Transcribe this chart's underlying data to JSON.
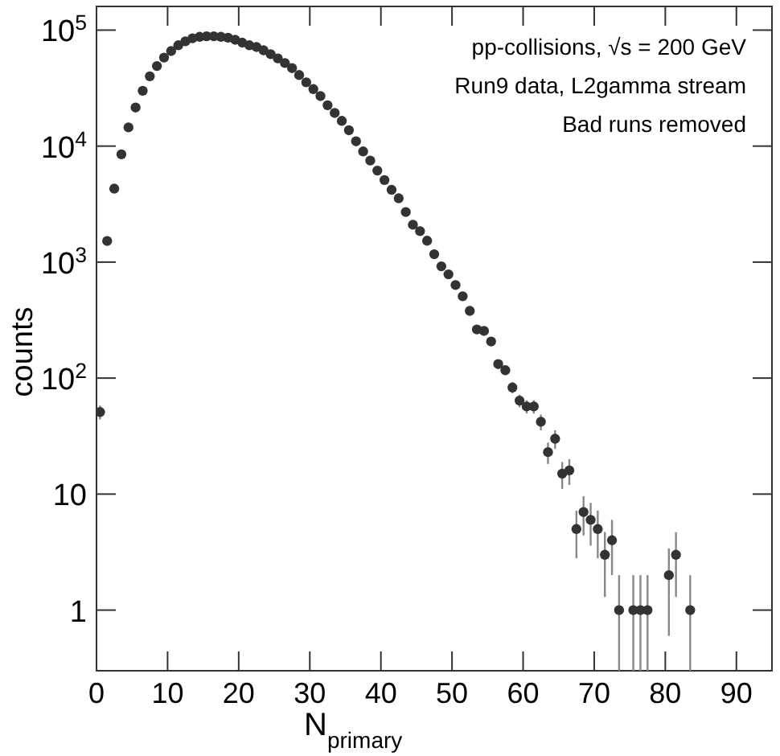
{
  "chart_data": {
    "type": "scatter",
    "xlabel": "N$_{primary}$",
    "ylabel": "counts",
    "annotations": [
      "pp-collisions, √s = 200 GeV",
      "Run9 data, L2gamma stream",
      "Bad runs removed"
    ],
    "log": "y",
    "marker": "circle",
    "grid": false,
    "xlim": [
      0,
      95
    ],
    "ylim": [
      0.3,
      160000
    ],
    "xticks": [
      0,
      10,
      20,
      30,
      40,
      50,
      60,
      70,
      80,
      90
    ],
    "yticks": [
      {
        "value": 1,
        "label": "1"
      },
      {
        "value": 10,
        "label": "10"
      },
      {
        "value": 100,
        "label": "10$^{2}$"
      },
      {
        "value": 1000,
        "label": "10$^{3}$"
      },
      {
        "value": 10000,
        "label": "10$^{4}$"
      },
      {
        "value": 100000,
        "label": "10$^{5}$"
      }
    ],
    "series": [
      {
        "color": "#333333",
        "x": [
          0.5,
          1.5,
          2.5,
          3.5,
          4.5,
          5.5,
          6.5,
          7.5,
          8.5,
          9.5,
          10.5,
          11.5,
          12.5,
          13.5,
          14.5,
          15.5,
          16.5,
          17.5,
          18.5,
          19.5,
          20.5,
          21.5,
          22.5,
          23.5,
          24.5,
          25.5,
          26.5,
          27.5,
          28.5,
          29.5,
          30.5,
          31.5,
          32.5,
          33.5,
          34.5,
          35.5,
          36.5,
          37.5,
          38.5,
          39.5,
          40.5,
          41.5,
          42.5,
          43.5,
          44.5,
          45.5,
          46.5,
          47.5,
          48.5,
          49.5,
          50.5,
          51.5,
          52.5,
          53.5,
          54.5,
          55.5,
          56.5,
          57.5,
          58.5,
          59.5,
          60.5,
          61.5,
          62.5,
          63.5,
          64.5,
          65.5,
          66.5,
          67.5,
          68.5,
          69.5,
          70.5,
          71.5,
          72.5,
          73.5,
          75.5,
          76.5,
          77.5,
          80.5,
          81.5,
          83.5
        ],
        "values": [
          51,
          1520,
          4300,
          8500,
          14500,
          21500,
          30000,
          40000,
          49000,
          58000,
          66000,
          74000,
          80000,
          85000,
          87500,
          88500,
          88500,
          87500,
          86000,
          82500,
          78000,
          74000,
          71500,
          67000,
          62000,
          57000,
          52000,
          47000,
          41000,
          35500,
          31000,
          27000,
          22500,
          19300,
          16500,
          13700,
          11000,
          9000,
          7500,
          6150,
          5100,
          4200,
          3550,
          2700,
          2100,
          1850,
          1530,
          1170,
          920,
          785,
          635,
          508,
          380,
          263,
          255,
          207,
          132,
          117,
          83,
          64,
          57,
          57,
          42,
          23,
          30,
          15,
          16,
          5,
          7,
          6,
          5,
          3,
          4,
          1,
          1,
          1,
          1,
          2,
          3,
          1
        ],
        "errors": [
          7,
          null,
          null,
          null,
          null,
          null,
          null,
          null,
          null,
          null,
          null,
          null,
          null,
          null,
          null,
          null,
          null,
          null,
          null,
          null,
          null,
          null,
          null,
          null,
          null,
          null,
          null,
          null,
          null,
          null,
          null,
          null,
          null,
          null,
          null,
          null,
          null,
          null,
          null,
          null,
          null,
          null,
          null,
          null,
          null,
          null,
          null,
          null,
          null,
          null,
          null,
          null,
          null,
          16,
          16,
          14,
          11,
          11,
          9,
          8,
          7.5,
          7.5,
          6.5,
          4.8,
          5.5,
          3.9,
          4,
          2.2,
          2.6,
          2.4,
          2.2,
          1.7,
          2,
          [
            0.3,
            2
          ],
          [
            0.3,
            2
          ],
          [
            0.3,
            2
          ],
          [
            0.3,
            2
          ],
          1.4,
          1.7,
          [
            0.3,
            2
          ]
        ]
      }
    ]
  }
}
